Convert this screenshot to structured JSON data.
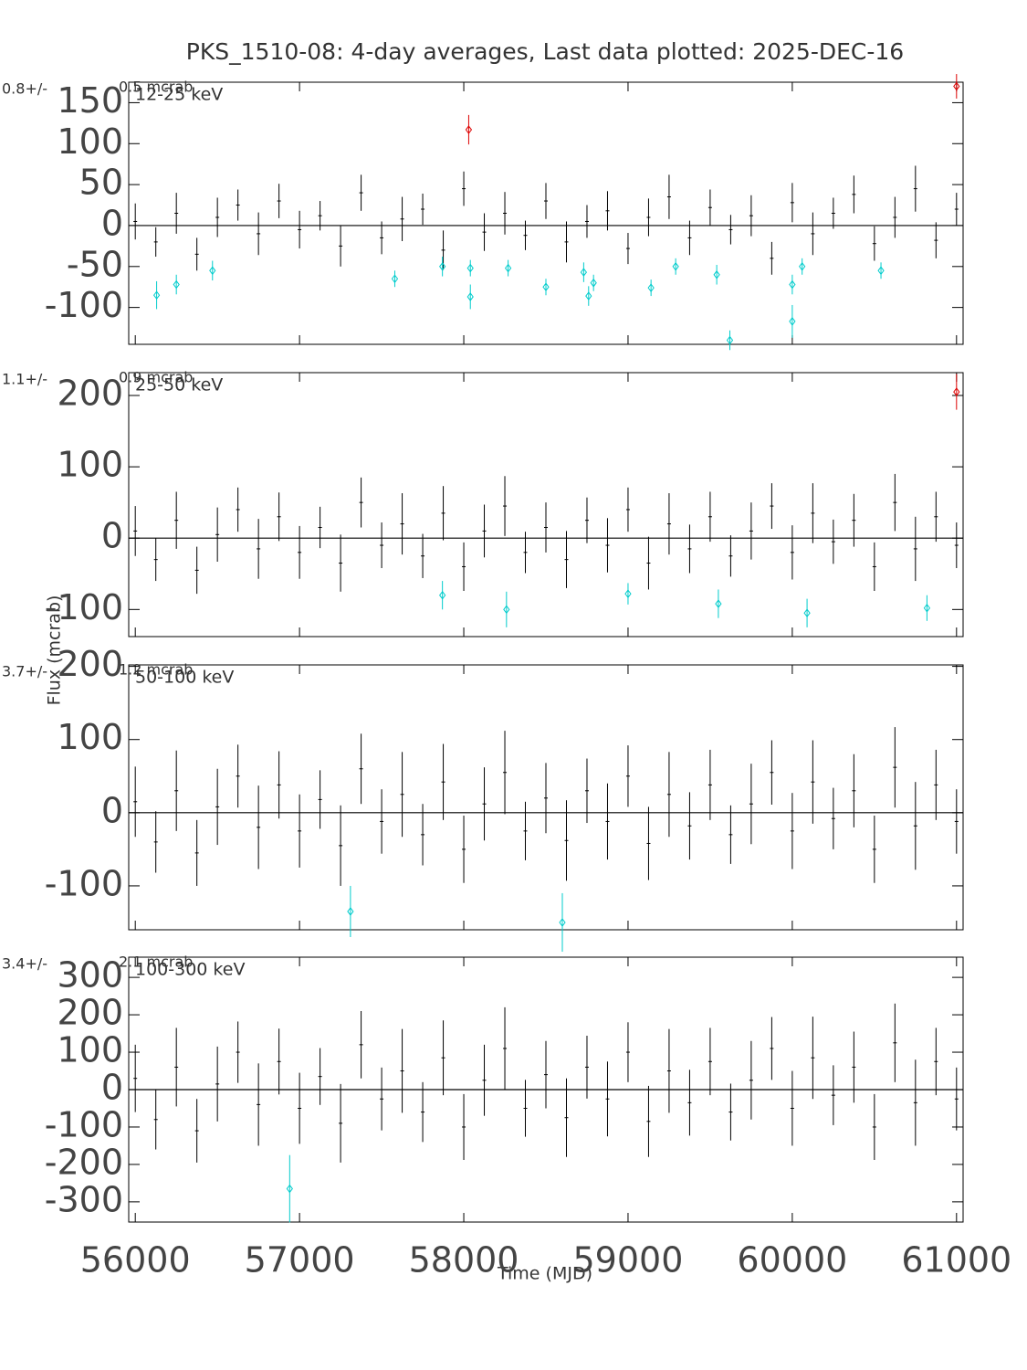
{
  "title": "PKS_1510-08:  4-day averages,  Last data plotted: 2025-DEC-16",
  "x_label": "Time (MJD)",
  "y_label": "Flux (mcrab)",
  "chart_data": [
    {
      "type": "errorbar",
      "band": "12-25 keV",
      "mean_label": "0.8+/-",
      "mean_err_label": "0.5 mcrab",
      "xlim": [
        55960,
        61040
      ],
      "xticks": [
        56000,
        57000,
        58000,
        59000,
        60000,
        61000
      ],
      "ylim": [
        -145,
        175
      ],
      "yticks": [
        -100,
        -50,
        0,
        50,
        100,
        150
      ],
      "series": [
        {
          "color": "#000000",
          "marker": false,
          "x": [
            56000,
            56125,
            56250,
            56375,
            56500,
            56625,
            56750,
            56875,
            57000,
            57125,
            57250,
            57375,
            57500,
            57625,
            57750,
            57875,
            58000,
            58125,
            58250,
            58375,
            58500,
            58625,
            58750,
            58875,
            59000,
            59125,
            59250,
            59375,
            59500,
            59625,
            59750,
            59875,
            60000,
            60125,
            60250,
            60375,
            60500,
            60625,
            60750,
            60875,
            61000
          ],
          "values": [
            5,
            -20,
            15,
            -35,
            10,
            25,
            -10,
            30,
            -5,
            12,
            -25,
            40,
            -15,
            8,
            20,
            -30,
            45,
            -8,
            15,
            -12,
            30,
            -20,
            5,
            18,
            -28,
            10,
            35,
            -15,
            22,
            -5,
            12,
            -40,
            28,
            -10,
            15,
            38,
            -22,
            10,
            45,
            -18,
            20
          ],
          "errors": [
            22,
            18,
            25,
            20,
            24,
            19,
            26,
            21,
            23,
            18,
            25,
            22,
            20,
            27,
            19,
            24,
            21,
            23,
            26,
            18,
            22,
            25,
            20,
            24,
            19,
            23,
            27,
            21,
            22,
            18,
            25,
            20,
            24,
            26,
            19,
            23,
            21,
            25,
            28,
            22,
            20
          ]
        },
        {
          "color": "#00cccc",
          "marker": true,
          "x": [
            56130,
            56250,
            56470,
            57580,
            57870,
            58040,
            58040,
            58270,
            58500,
            58730,
            58760,
            58790,
            59140,
            59290,
            59540,
            59620,
            60000,
            60000,
            60060,
            60540
          ],
          "values": [
            -85,
            -72,
            -55,
            -65,
            -50,
            -87,
            -52,
            -52,
            -75,
            -57,
            -86,
            -70,
            -76,
            -50,
            -60,
            -140,
            -72,
            -117,
            -50,
            -55
          ],
          "errors": [
            17,
            12,
            12,
            10,
            12,
            15,
            10,
            10,
            10,
            12,
            12,
            10,
            10,
            10,
            12,
            12,
            12,
            20,
            10,
            10
          ]
        },
        {
          "color": "#dd0000",
          "marker": true,
          "x": [
            58030,
            61000
          ],
          "values": [
            117,
            170
          ],
          "errors": [
            18,
            15
          ]
        }
      ]
    },
    {
      "type": "errorbar",
      "band": "25-50 keV",
      "mean_label": "1.1+/-",
      "mean_err_label": "0.9 mcrab",
      "xlim": [
        55960,
        61040
      ],
      "xticks": [
        56000,
        57000,
        58000,
        59000,
        60000,
        61000
      ],
      "ylim": [
        -138,
        232
      ],
      "yticks": [
        -100,
        0,
        100,
        200
      ],
      "series": [
        {
          "color": "#000000",
          "marker": false,
          "x": [
            56000,
            56125,
            56250,
            56375,
            56500,
            56625,
            56750,
            56875,
            57000,
            57125,
            57250,
            57375,
            57500,
            57625,
            57750,
            57875,
            58000,
            58125,
            58250,
            58375,
            58500,
            58625,
            58750,
            58875,
            59000,
            59125,
            59250,
            59375,
            59500,
            59625,
            59750,
            59875,
            60000,
            60125,
            60250,
            60375,
            60500,
            60625,
            60750,
            60875,
            61000
          ],
          "values": [
            10,
            -30,
            25,
            -45,
            5,
            40,
            -15,
            30,
            -20,
            15,
            -35,
            50,
            -10,
            20,
            -25,
            35,
            -40,
            10,
            45,
            -20,
            15,
            -30,
            25,
            -10,
            40,
            -35,
            20,
            -15,
            30,
            -25,
            10,
            45,
            -20,
            35,
            -5,
            25,
            -40,
            50,
            -15,
            30,
            -10
          ],
          "errors": [
            35,
            30,
            40,
            33,
            38,
            31,
            42,
            34,
            37,
            29,
            40,
            35,
            32,
            43,
            31,
            38,
            34,
            37,
            42,
            29,
            35,
            40,
            32,
            38,
            31,
            37,
            43,
            34,
            35,
            29,
            40,
            32,
            38,
            42,
            31,
            37,
            34,
            40,
            45,
            35,
            32
          ]
        },
        {
          "color": "#00cccc",
          "marker": true,
          "x": [
            57870,
            58260,
            59000,
            59550,
            60090,
            60820
          ],
          "values": [
            -80,
            -100,
            -78,
            -92,
            -105,
            -98
          ],
          "errors": [
            20,
            25,
            15,
            20,
            20,
            18
          ]
        },
        {
          "color": "#dd0000",
          "marker": true,
          "x": [
            61000
          ],
          "values": [
            205
          ],
          "errors": [
            25
          ]
        }
      ]
    },
    {
      "type": "errorbar",
      "band": "50-100 keV",
      "mean_label": "3.7+/-",
      "mean_err_label": "1.2 mcrab",
      "xlim": [
        55960,
        61040
      ],
      "xticks": [
        56000,
        57000,
        58000,
        59000,
        60000,
        61000
      ],
      "ylim": [
        -160,
        202
      ],
      "yticks": [
        -100,
        0,
        100,
        200
      ],
      "series": [
        {
          "color": "#000000",
          "marker": false,
          "x": [
            56000,
            56125,
            56250,
            56375,
            56500,
            56625,
            56750,
            56875,
            57000,
            57125,
            57250,
            57375,
            57500,
            57625,
            57750,
            57875,
            58000,
            58125,
            58250,
            58375,
            58500,
            58625,
            58750,
            58875,
            59000,
            59125,
            59250,
            59375,
            59500,
            59625,
            59750,
            59875,
            60000,
            60125,
            60250,
            60375,
            60500,
            60625,
            60750,
            60875,
            61000
          ],
          "values": [
            15,
            -40,
            30,
            -55,
            8,
            50,
            -20,
            38,
            -25,
            18,
            -45,
            60,
            -12,
            25,
            -30,
            42,
            -50,
            12,
            55,
            -25,
            20,
            -38,
            30,
            -12,
            50,
            -42,
            25,
            -18,
            38,
            -30,
            12,
            55,
            -25,
            42,
            -8,
            30,
            -50,
            62,
            -18,
            38,
            -12
          ],
          "errors": [
            48,
            42,
            55,
            45,
            52,
            43,
            57,
            46,
            50,
            40,
            55,
            48,
            44,
            58,
            42,
            52,
            46,
            50,
            57,
            40,
            48,
            55,
            44,
            52,
            42,
            50,
            58,
            46,
            48,
            40,
            55,
            44,
            52,
            57,
            42,
            50,
            46,
            55,
            60,
            48,
            44
          ]
        },
        {
          "color": "#00cccc",
          "marker": true,
          "x": [
            57310,
            58600
          ],
          "values": [
            -135,
            -150
          ],
          "errors": [
            35,
            40
          ]
        }
      ]
    },
    {
      "type": "errorbar",
      "band": "100-300 keV",
      "mean_label": "3.4+/-",
      "mean_err_label": "2.1 mcrab",
      "xlim": [
        55960,
        61040
      ],
      "xticks": [
        56000,
        57000,
        58000,
        59000,
        60000,
        61000
      ],
      "ylim": [
        -354,
        354
      ],
      "yticks": [
        -300,
        -200,
        -100,
        0,
        100,
        200,
        300
      ],
      "series": [
        {
          "color": "#000000",
          "marker": false,
          "x": [
            56000,
            56125,
            56250,
            56375,
            56500,
            56625,
            56750,
            56875,
            57000,
            57125,
            57250,
            57375,
            57500,
            57625,
            57750,
            57875,
            58000,
            58125,
            58250,
            58375,
            58500,
            58625,
            58750,
            58875,
            59000,
            59125,
            59250,
            59375,
            59500,
            59625,
            59750,
            59875,
            60000,
            60125,
            60250,
            60375,
            60500,
            60625,
            60750,
            60875,
            61000
          ],
          "values": [
            30,
            -80,
            60,
            -110,
            15,
            100,
            -40,
            75,
            -50,
            35,
            -90,
            120,
            -25,
            50,
            -60,
            85,
            -100,
            25,
            110,
            -50,
            40,
            -75,
            60,
            -25,
            100,
            -85,
            50,
            -35,
            75,
            -60,
            25,
            110,
            -50,
            85,
            -15,
            60,
            -100,
            125,
            -35,
            75,
            -25
          ],
          "errors": [
            90,
            80,
            105,
            85,
            100,
            82,
            110,
            88,
            95,
            76,
            105,
            90,
            84,
            112,
            80,
            100,
            88,
            95,
            110,
            76,
            90,
            105,
            84,
            100,
            80,
            95,
            112,
            88,
            90,
            76,
            105,
            84,
            100,
            110,
            80,
            95,
            88,
            105,
            115,
            90,
            84
          ]
        },
        {
          "color": "#00cccc",
          "marker": true,
          "x": [
            56940
          ],
          "values": [
            -265
          ],
          "errors": [
            90
          ]
        }
      ]
    }
  ]
}
